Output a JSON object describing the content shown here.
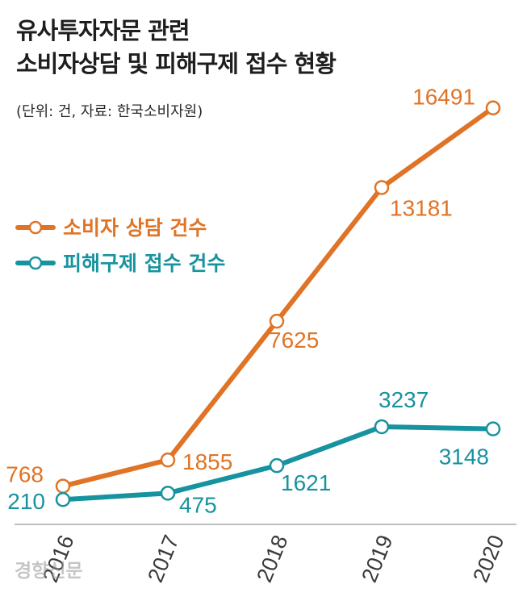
{
  "title_line1": "유사투자자문 관련",
  "title_line2": "소비자상담 및 피해구제 접수 현황",
  "source": "(단위: 건, 자료: 한국소비자원)",
  "watermark": "경향신문",
  "colors": {
    "consult": "#e07426",
    "relief": "#17939f",
    "axis": "#bdbdbd"
  },
  "chart_data": {
    "type": "line",
    "categories": [
      "2016",
      "2017",
      "2018",
      "2019",
      "2020"
    ],
    "ylim": [
      0,
      17000
    ],
    "legend_position": "top-left",
    "grid": false,
    "series": [
      {
        "name": "소비자 상담 건수",
        "values": [
          768,
          1855,
          7625,
          13181,
          16491
        ]
      },
      {
        "name": "피해구제 접수 건수",
        "values": [
          210,
          475,
          1621,
          3237,
          3148
        ]
      }
    ]
  }
}
